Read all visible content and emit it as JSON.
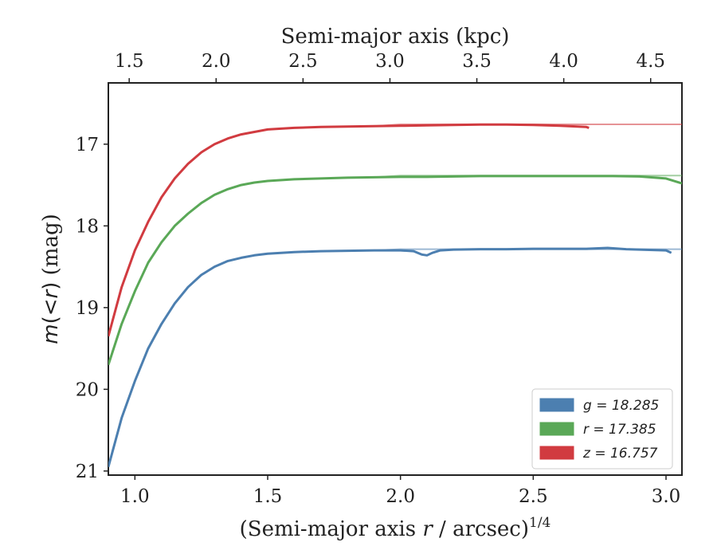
{
  "chart_data": {
    "type": "line",
    "xlabel_bottom": "(Semi-major axis r / arcsec)",
    "xlabel_bottom_parts": {
      "prefix": "(Semi-major axis ",
      "var": "r",
      "suffix": " / arcsec)",
      "sup": "1/4"
    },
    "xlabel_top": "Semi-major axis (kpc)",
    "ylabel": "m(< r) (mag)",
    "ylabel_parts": {
      "m": "m",
      "paren_open": "(",
      "lt": "<",
      "r": "r",
      "paren_close": ")",
      "unit": " (mag)"
    },
    "xlim": [
      0.9,
      3.06
    ],
    "ylim": [
      21.05,
      16.25
    ],
    "y_inverted": true,
    "xticks": [
      1.0,
      1.5,
      2.0,
      2.5,
      3.0
    ],
    "xtick_labels": [
      "1.0",
      "1.5",
      "2.0",
      "2.5",
      "3.0"
    ],
    "top_xticks": [
      1.5,
      2.0,
      2.5,
      3.0,
      3.5,
      4.0,
      4.5
    ],
    "top_xtick_labels": [
      "1.5",
      "2.0",
      "2.5",
      "3.0",
      "3.5",
      "4.0",
      "4.5"
    ],
    "top_xlim": [
      1.38,
      4.68
    ],
    "yticks": [
      17,
      18,
      19,
      20,
      21
    ],
    "ytick_labels": [
      "17",
      "18",
      "19",
      "20",
      "21"
    ],
    "grid": false,
    "legend_position": "bottom-right",
    "series": [
      {
        "name": "g = 18.285",
        "band": "g",
        "value": "18.285",
        "color": "#4c7fb0",
        "x": [
          0.9,
          0.95,
          1.0,
          1.05,
          1.1,
          1.15,
          1.2,
          1.25,
          1.3,
          1.35,
          1.4,
          1.45,
          1.5,
          1.6,
          1.7,
          1.8,
          1.9,
          2.0,
          2.05,
          2.08,
          2.1,
          2.12,
          2.15,
          2.2,
          2.3,
          2.4,
          2.5,
          2.6,
          2.7,
          2.78,
          2.85,
          2.9,
          3.0,
          3.02
        ],
        "y": [
          20.95,
          20.35,
          19.9,
          19.5,
          19.2,
          18.95,
          18.75,
          18.6,
          18.5,
          18.43,
          18.39,
          18.36,
          18.34,
          18.32,
          18.31,
          18.305,
          18.3,
          18.3,
          18.31,
          18.35,
          18.36,
          18.33,
          18.3,
          18.29,
          18.285,
          18.285,
          18.28,
          18.28,
          18.28,
          18.27,
          18.285,
          18.29,
          18.3,
          18.33
        ],
        "model_y": 18.285
      },
      {
        "name": "r = 17.385",
        "band": "r",
        "value": "17.385",
        "color": "#5aa857",
        "x": [
          0.9,
          0.95,
          1.0,
          1.05,
          1.1,
          1.15,
          1.2,
          1.25,
          1.3,
          1.35,
          1.4,
          1.45,
          1.5,
          1.6,
          1.7,
          1.8,
          1.9,
          2.0,
          2.1,
          2.2,
          2.3,
          2.4,
          2.5,
          2.6,
          2.7,
          2.8,
          2.9,
          3.0,
          3.06
        ],
        "y": [
          19.7,
          19.2,
          18.8,
          18.45,
          18.2,
          18.0,
          17.85,
          17.72,
          17.62,
          17.55,
          17.5,
          17.47,
          17.45,
          17.43,
          17.42,
          17.41,
          17.405,
          17.4,
          17.4,
          17.395,
          17.39,
          17.39,
          17.39,
          17.39,
          17.39,
          17.39,
          17.395,
          17.42,
          17.48
        ],
        "model_y": 17.385
      },
      {
        "name": "z = 16.757",
        "band": "z",
        "value": "16.757",
        "color": "#d13b40",
        "x": [
          0.9,
          0.95,
          1.0,
          1.05,
          1.1,
          1.15,
          1.2,
          1.25,
          1.3,
          1.35,
          1.4,
          1.45,
          1.5,
          1.6,
          1.7,
          1.8,
          1.9,
          2.0,
          2.1,
          2.2,
          2.3,
          2.4,
          2.5,
          2.6,
          2.7,
          2.71
        ],
        "y": [
          19.35,
          18.75,
          18.3,
          17.95,
          17.65,
          17.42,
          17.24,
          17.1,
          17.0,
          16.93,
          16.88,
          16.85,
          16.82,
          16.8,
          16.79,
          16.785,
          16.78,
          16.775,
          16.77,
          16.765,
          16.76,
          16.76,
          16.765,
          16.775,
          16.79,
          16.8
        ],
        "model_y": 16.757
      }
    ]
  }
}
